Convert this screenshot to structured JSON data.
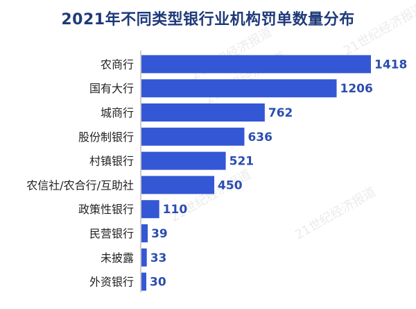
{
  "chart_data": {
    "type": "bar",
    "orientation": "horizontal",
    "title": "2021年不同类型银行业机构罚单数量分布",
    "categories": [
      "农商行",
      "国有大行",
      "城商行",
      "股份制银行",
      "村镇银行",
      "农信社/农合行/互助社",
      "政策性银行",
      "民营银行",
      "未披露",
      "外资银行"
    ],
    "values": [
      1418,
      1206,
      762,
      636,
      521,
      450,
      110,
      39,
      33,
      30
    ],
    "xlim": [
      0,
      1418
    ],
    "grid": false,
    "bar_color": "#3457d5",
    "axis_color": "#999999",
    "value_label_color": "#2b4db0",
    "title_color": "#1f3a7a"
  },
  "watermark": "21世纪经济报道"
}
